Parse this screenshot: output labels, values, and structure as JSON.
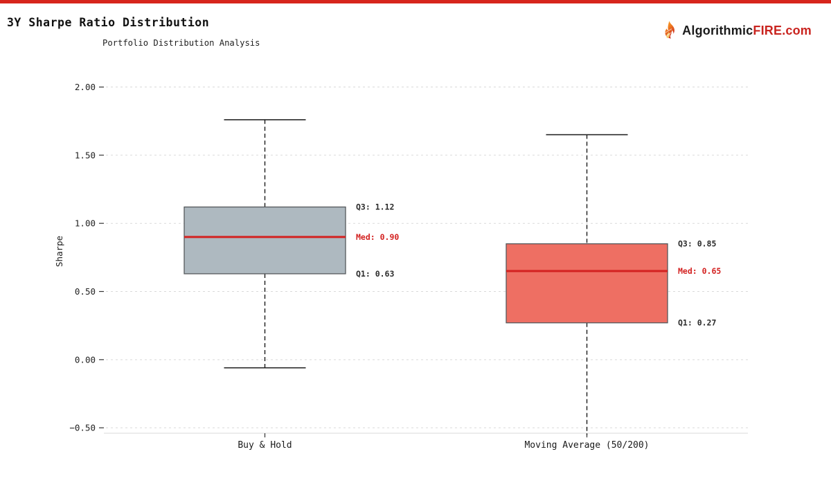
{
  "header": {
    "title": "3Y Sharpe Ratio Distribution"
  },
  "logo": {
    "icon": "flame-icon",
    "brand_dark": "Algorithmic",
    "brand_red": "FIRE",
    "brand_tld": ".com"
  },
  "chart_data": {
    "type": "box",
    "title": "3Y Sharpe Ratio Distribution",
    "subtitle": "Portfolio Distribution Analysis",
    "ylabel": "Sharpe",
    "ylim": [
      -0.54,
      2.13
    ],
    "grid": {
      "axis": "y",
      "style": "dashed"
    },
    "legend": "none",
    "yticks": [
      {
        "value": 2.0,
        "label": "2.00"
      },
      {
        "value": 1.5,
        "label": "1.50"
      },
      {
        "value": 1.0,
        "label": "1.00"
      },
      {
        "value": 0.5,
        "label": "0.50"
      },
      {
        "value": 0.0,
        "label": "0.00"
      },
      {
        "value": -0.5,
        "label": "−0.50"
      }
    ],
    "categories": [
      "Buy & Hold",
      "Moving Average (50/200)"
    ],
    "series": [
      {
        "name": "Buy & Hold",
        "whisker_high": 1.76,
        "q3": 1.12,
        "median": 0.9,
        "q1": 0.63,
        "whisker_low": -0.06,
        "whisker_low_clipped": false,
        "box_color": "#aeb9c0",
        "labels": {
          "q3_label": "Q3: 1.12",
          "med_label": "Med: 0.90",
          "q1_label": "Q1: 0.63"
        }
      },
      {
        "name": "Moving Average (50/200)",
        "whisker_high": 1.65,
        "q3": 0.85,
        "median": 0.65,
        "q1": 0.27,
        "whisker_low": null,
        "whisker_low_clipped": true,
        "box_color": "#ee6f63",
        "labels": {
          "q3_label": "Q3: 0.85",
          "med_label": "Med: 0.65",
          "q1_label": "Q1: 0.27"
        }
      }
    ],
    "colors": {
      "accent_bar": "#d7261d",
      "median": "#d32120",
      "grid": "#d9d9d9",
      "spine": "#d8d8d8",
      "whisker": "#1a1a1a",
      "box_border": "#55595c",
      "stat_text": "#2b2b2b"
    }
  }
}
